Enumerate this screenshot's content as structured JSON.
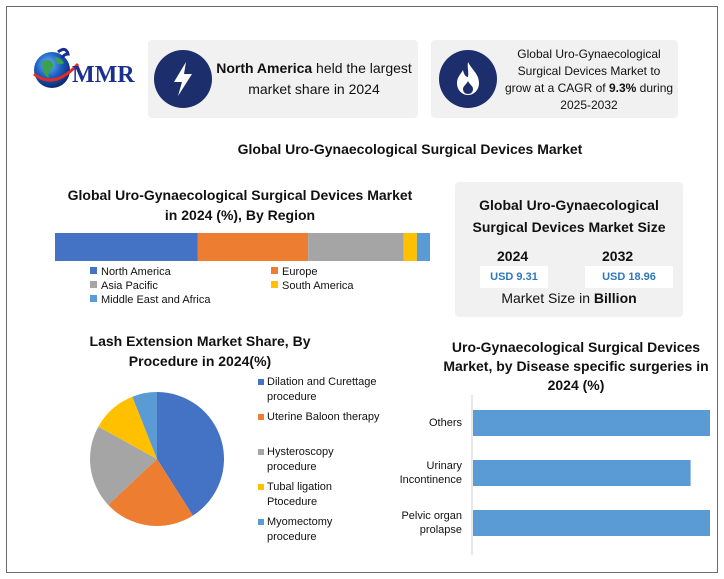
{
  "brand": {
    "logo_text": "MMR"
  },
  "cards": {
    "north_america": {
      "bold": "North America",
      "rest": " held the largest market share in 2024"
    },
    "cagr": {
      "pre": "Global Uro-Gynaecological Surgical Devices Market to grow at a CAGR of ",
      "bold": "9.3%",
      "post": " during 2025-2032"
    }
  },
  "main_title": "Global Uro-Gynaecological Surgical Devices Market",
  "size_card": {
    "title": "Global Uro-Gynaecological Surgical Devices Market Size",
    "year1": "2024",
    "year2": "2032",
    "value1": "USD 9.31",
    "value2": "USD 18.96",
    "foot_pre": "Market Size in ",
    "foot_bold": "Billion"
  },
  "colors": {
    "blue": "#4472c4",
    "orange": "#ed7d31",
    "gray": "#a5a5a5",
    "yellow": "#ffc000",
    "lightblue": "#5b9bd5",
    "navy": "#1c2f6c"
  },
  "icons": {
    "card1": "lightning-icon",
    "card2": "flame-icon",
    "logo": "globe-icon"
  },
  "chart_data": [
    {
      "type": "bar",
      "title": "Global Uro-Gynaecological Surgical Devices Market in 2024 (%), By Region",
      "stacked": true,
      "orientation": "horizontal",
      "categories": [
        "North America",
        "Europe",
        "Asia Pacific",
        "South America",
        "Middle East and Africa"
      ],
      "values": [
        38,
        29.5,
        25.5,
        3.5,
        3.5
      ],
      "unit": "%",
      "legend": "bottom"
    },
    {
      "type": "pie",
      "title": "Lash Extension Market Share, By Procedure in 2024(%)",
      "categories": [
        "Dilation and Curettage procedure",
        "Uterine Baloon therapy",
        "Hysteroscopy procedure",
        "Tubal ligation Ptocedure",
        "Myomectomy procedure"
      ],
      "values": [
        41,
        22,
        20,
        11,
        6
      ],
      "unit": "%",
      "legend": "right"
    },
    {
      "type": "bar",
      "orientation": "horizontal",
      "title": "Uro-Gynaecological Surgical Devices Market, by Disease specific surgeries in 2024 (%)",
      "categories": [
        "Others",
        "Urinary Incontinence",
        "Pelvic organ prolapse"
      ],
      "values": [
        36,
        32,
        40
      ],
      "unit": "%",
      "grid": false,
      "legend": "none"
    }
  ]
}
